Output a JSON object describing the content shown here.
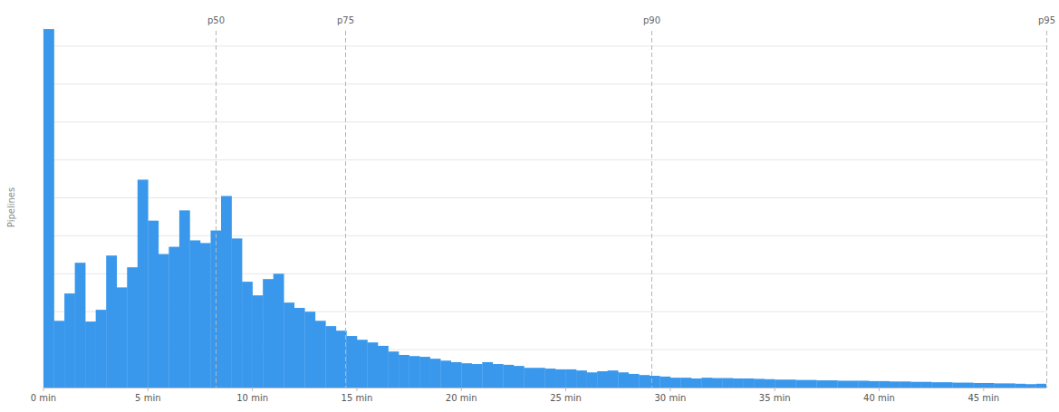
{
  "chart_data": {
    "type": "histogram",
    "y_label": "Pipelines",
    "bins": [
      0,
      0.5,
      1,
      1.5,
      2,
      2.5,
      3,
      3.5,
      4,
      4.5,
      5,
      5.5,
      6,
      6.5,
      7,
      7.5,
      8,
      8.5,
      9,
      9.5,
      10,
      10.5,
      11,
      11.5,
      12,
      12.5,
      13,
      13.5,
      14,
      14.5,
      15,
      15.5,
      16,
      16.5,
      17,
      17.5,
      18,
      18.5,
      19,
      19.5,
      20,
      20.5,
      21,
      21.5,
      22,
      22.5,
      23,
      23.5,
      24,
      24.5,
      25,
      25.5,
      26,
      26.5,
      27,
      27.5,
      28,
      28.5,
      29,
      29.5,
      30,
      30.5,
      31,
      31.5,
      32,
      32.5,
      33,
      33.5,
      34,
      34.5,
      35,
      35.5,
      36,
      36.5,
      37,
      37.5,
      38,
      38.5,
      39,
      39.5,
      40,
      40.5,
      41,
      41.5,
      42,
      42.5,
      43,
      43.5,
      44,
      44.5,
      45,
      45.5,
      46,
      46.5,
      47,
      47.5,
      48
    ],
    "values": [
      945,
      176,
      248,
      329,
      174,
      205,
      348,
      264,
      317,
      548,
      440,
      352,
      371,
      467,
      388,
      381,
      414,
      505,
      393,
      279,
      243,
      286,
      300,
      224,
      210,
      200,
      176,
      162,
      150,
      136,
      126,
      119,
      110,
      95,
      86,
      83,
      81,
      76,
      71,
      67,
      64,
      62,
      67,
      62,
      60,
      57,
      52,
      52,
      50,
      48,
      48,
      45,
      40,
      43,
      45,
      40,
      36,
      33,
      31,
      29,
      26,
      26,
      24,
      26,
      25,
      25,
      24,
      24,
      23,
      22,
      21,
      21,
      20,
      20,
      19,
      19,
      18,
      18,
      18,
      17,
      17,
      16,
      16,
      15,
      15,
      14,
      14,
      13,
      13,
      12,
      12,
      11,
      11,
      10,
      9,
      10
    ],
    "color": "#3a98ec",
    "xlim": [
      0,
      48
    ],
    "ylim": [
      0,
      950
    ],
    "xticks": [
      {
        "value": 0,
        "label": "0 min"
      },
      {
        "value": 5,
        "label": "5 min"
      },
      {
        "value": 10,
        "label": "10 min"
      },
      {
        "value": 15,
        "label": "15 min"
      },
      {
        "value": 20,
        "label": "20 min"
      },
      {
        "value": 25,
        "label": "25 min"
      },
      {
        "value": 30,
        "label": "30 min"
      },
      {
        "value": 35,
        "label": "35 min"
      },
      {
        "value": 40,
        "label": "40 min"
      },
      {
        "value": 45,
        "label": "45 min"
      }
    ],
    "yticks": [
      0,
      100,
      200,
      300,
      400,
      500,
      600,
      700,
      800,
      900
    ],
    "grid": true,
    "tick_labels": "x",
    "annotations": [
      {
        "label": "p50",
        "value": 8.25
      },
      {
        "label": "p75",
        "value": 14.45
      },
      {
        "label": "p90",
        "value": 29.1
      },
      {
        "label": "p95",
        "value": 48
      }
    ]
  }
}
